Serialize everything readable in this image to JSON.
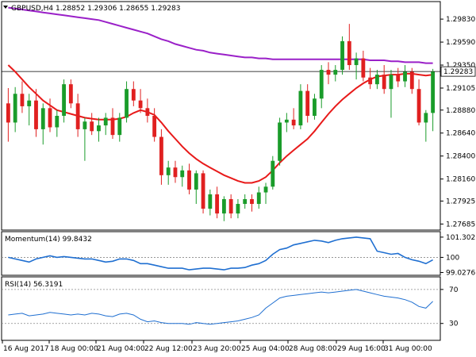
{
  "chart_data": [
    {
      "type": "candlestick",
      "symbol": "GBPUSD",
      "timeframe": "H4",
      "header": "GBPUSD,H4  1.28852 1.29306 1.28655 1.29283",
      "last_price": 1.29283,
      "last_price_label": "1.29283",
      "ylim": [
        1.2766,
        1.2998
      ],
      "y_ticks": [
        1.2983,
        1.2959,
        1.2935,
        1.2911,
        1.2888,
        1.2864,
        1.284,
        1.2816,
        1.2793,
        1.2769
      ],
      "y_tick_labels": [
        "1.29830",
        "1.29590",
        "1.29350",
        "1.29283",
        "1.29105",
        "1.28880",
        "1.28640",
        "1.28400",
        "1.28160",
        "1.27925",
        "1.27685"
      ],
      "x_labels": [
        "16 Aug 2017",
        "18 Aug 00:00",
        "21 Aug 04:00",
        "22 Aug 12:00",
        "23 Aug 20:00",
        "25 Aug 04:00",
        "28 Aug 08:00",
        "29 Aug 16:00",
        "31 Aug 00:00"
      ],
      "colors": {
        "bull": "#1a9c2a",
        "bear": "#e02020",
        "ma_fast": "#e81a1a",
        "ma_slow": "#9a20c8",
        "price_line": "#000000"
      },
      "candles": [
        {
          "o": 1.2895,
          "h": 1.2911,
          "l": 1.2855,
          "c": 1.2875
        },
        {
          "o": 1.2875,
          "h": 1.2912,
          "l": 1.2865,
          "c": 1.2905
        },
        {
          "o": 1.2905,
          "h": 1.2918,
          "l": 1.2885,
          "c": 1.2892
        },
        {
          "o": 1.2892,
          "h": 1.2905,
          "l": 1.2872,
          "c": 1.2898
        },
        {
          "o": 1.2898,
          "h": 1.291,
          "l": 1.286,
          "c": 1.2868
        },
        {
          "o": 1.2868,
          "h": 1.2895,
          "l": 1.2852,
          "c": 1.289
        },
        {
          "o": 1.289,
          "h": 1.29,
          "l": 1.2865,
          "c": 1.287
        },
        {
          "o": 1.287,
          "h": 1.2888,
          "l": 1.286,
          "c": 1.2882
        },
        {
          "o": 1.2882,
          "h": 1.292,
          "l": 1.2875,
          "c": 1.2915
        },
        {
          "o": 1.2915,
          "h": 1.292,
          "l": 1.289,
          "c": 1.2895
        },
        {
          "o": 1.2895,
          "h": 1.2905,
          "l": 1.286,
          "c": 1.2868
        },
        {
          "o": 1.2868,
          "h": 1.288,
          "l": 1.2835,
          "c": 1.2876
        },
        {
          "o": 1.2876,
          "h": 1.2885,
          "l": 1.2862,
          "c": 1.2866
        },
        {
          "o": 1.2866,
          "h": 1.288,
          "l": 1.2855,
          "c": 1.2872
        },
        {
          "o": 1.2872,
          "h": 1.2885,
          "l": 1.2862,
          "c": 1.288
        },
        {
          "o": 1.288,
          "h": 1.289,
          "l": 1.2858,
          "c": 1.2862
        },
        {
          "o": 1.2862,
          "h": 1.2885,
          "l": 1.2855,
          "c": 1.288
        },
        {
          "o": 1.288,
          "h": 1.2918,
          "l": 1.2875,
          "c": 1.291
        },
        {
          "o": 1.291,
          "h": 1.2918,
          "l": 1.2892,
          "c": 1.2898
        },
        {
          "o": 1.2898,
          "h": 1.291,
          "l": 1.2885,
          "c": 1.289
        },
        {
          "o": 1.289,
          "h": 1.29,
          "l": 1.2875,
          "c": 1.2882
        },
        {
          "o": 1.2882,
          "h": 1.289,
          "l": 1.2855,
          "c": 1.286
        },
        {
          "o": 1.286,
          "h": 1.2868,
          "l": 1.281,
          "c": 1.282
        },
        {
          "o": 1.282,
          "h": 1.2835,
          "l": 1.281,
          "c": 1.2828
        },
        {
          "o": 1.2828,
          "h": 1.2835,
          "l": 1.2812,
          "c": 1.2818
        },
        {
          "o": 1.2818,
          "h": 1.283,
          "l": 1.2808,
          "c": 1.2825
        },
        {
          "o": 1.2825,
          "h": 1.2832,
          "l": 1.28,
          "c": 1.2805
        },
        {
          "o": 1.2805,
          "h": 1.2825,
          "l": 1.279,
          "c": 1.2822
        },
        {
          "o": 1.2822,
          "h": 1.2825,
          "l": 1.278,
          "c": 1.2785
        },
        {
          "o": 1.2785,
          "h": 1.2805,
          "l": 1.2778,
          "c": 1.28
        },
        {
          "o": 1.28,
          "h": 1.2808,
          "l": 1.2775,
          "c": 1.278
        },
        {
          "o": 1.278,
          "h": 1.2798,
          "l": 1.2772,
          "c": 1.2795
        },
        {
          "o": 1.2795,
          "h": 1.28,
          "l": 1.2775,
          "c": 1.278
        },
        {
          "o": 1.278,
          "h": 1.2795,
          "l": 1.2775,
          "c": 1.279
        },
        {
          "o": 1.279,
          "h": 1.28,
          "l": 1.2785,
          "c": 1.2795
        },
        {
          "o": 1.2795,
          "h": 1.28,
          "l": 1.2782,
          "c": 1.279
        },
        {
          "o": 1.279,
          "h": 1.2808,
          "l": 1.2785,
          "c": 1.2802
        },
        {
          "o": 1.2802,
          "h": 1.2812,
          "l": 1.279,
          "c": 1.2808
        },
        {
          "o": 1.2808,
          "h": 1.284,
          "l": 1.2805,
          "c": 1.2835
        },
        {
          "o": 1.2835,
          "h": 1.288,
          "l": 1.283,
          "c": 1.2875
        },
        {
          "o": 1.2875,
          "h": 1.2885,
          "l": 1.2865,
          "c": 1.2878
        },
        {
          "o": 1.2878,
          "h": 1.289,
          "l": 1.2868,
          "c": 1.2872
        },
        {
          "o": 1.2872,
          "h": 1.2915,
          "l": 1.2868,
          "c": 1.2908
        },
        {
          "o": 1.2908,
          "h": 1.2915,
          "l": 1.2875,
          "c": 1.2882
        },
        {
          "o": 1.2882,
          "h": 1.2905,
          "l": 1.2878,
          "c": 1.29
        },
        {
          "o": 1.29,
          "h": 1.2935,
          "l": 1.289,
          "c": 1.293
        },
        {
          "o": 1.293,
          "h": 1.2938,
          "l": 1.2915,
          "c": 1.2925
        },
        {
          "o": 1.2925,
          "h": 1.2935,
          "l": 1.2918,
          "c": 1.293
        },
        {
          "o": 1.293,
          "h": 1.2965,
          "l": 1.2925,
          "c": 1.296
        },
        {
          "o": 1.296,
          "h": 1.2978,
          "l": 1.293,
          "c": 1.2935
        },
        {
          "o": 1.2935,
          "h": 1.2948,
          "l": 1.292,
          "c": 1.2942
        },
        {
          "o": 1.2942,
          "h": 1.295,
          "l": 1.2918,
          "c": 1.2922
        },
        {
          "o": 1.2922,
          "h": 1.2932,
          "l": 1.291,
          "c": 1.2915
        },
        {
          "o": 1.2915,
          "h": 1.293,
          "l": 1.291,
          "c": 1.2925
        },
        {
          "o": 1.2925,
          "h": 1.2935,
          "l": 1.2905,
          "c": 1.291
        },
        {
          "o": 1.291,
          "h": 1.293,
          "l": 1.288,
          "c": 1.2925
        },
        {
          "o": 1.2925,
          "h": 1.2932,
          "l": 1.2912,
          "c": 1.2918
        },
        {
          "o": 1.2918,
          "h": 1.2935,
          "l": 1.2912,
          "c": 1.2928
        },
        {
          "o": 1.2928,
          "h": 1.2932,
          "l": 1.2905,
          "c": 1.291
        },
        {
          "o": 1.291,
          "h": 1.292,
          "l": 1.2872,
          "c": 1.2875
        },
        {
          "o": 1.2875,
          "h": 1.2888,
          "l": 1.2855,
          "c": 1.2885
        },
        {
          "o": 1.2885,
          "h": 1.2931,
          "l": 1.2866,
          "c": 1.2928
        }
      ],
      "ma_fast": [
        1.2935,
        1.2928,
        1.292,
        1.2912,
        1.2905,
        1.2898,
        1.2893,
        1.2888,
        1.2886,
        1.2884,
        1.2882,
        1.288,
        1.2879,
        1.2878,
        1.2878,
        1.2878,
        1.2879,
        1.2881,
        1.2885,
        1.2888,
        1.2886,
        1.2883,
        1.2875,
        1.2866,
        1.2858,
        1.285,
        1.2843,
        1.2837,
        1.2832,
        1.2828,
        1.2824,
        1.282,
        1.2817,
        1.2814,
        1.2812,
        1.2812,
        1.2814,
        1.2818,
        1.2825,
        1.2833,
        1.284,
        1.2846,
        1.2852,
        1.2858,
        1.2866,
        1.2875,
        1.2884,
        1.2892,
        1.2899,
        1.2905,
        1.2911,
        1.2916,
        1.292,
        1.2923,
        1.2924,
        1.2925,
        1.2925,
        1.2926,
        1.2926,
        1.2925,
        1.2924,
        1.2925
      ],
      "ma_slow": [
        1.2995,
        1.2994,
        1.2993,
        1.2992,
        1.2991,
        1.299,
        1.2989,
        1.2988,
        1.2987,
        1.2986,
        1.2985,
        1.2984,
        1.2983,
        1.2982,
        1.298,
        1.2978,
        1.2976,
        1.2974,
        1.2972,
        1.297,
        1.2968,
        1.2965,
        1.2962,
        1.296,
        1.2957,
        1.2955,
        1.2953,
        1.2951,
        1.295,
        1.2948,
        1.2947,
        1.2946,
        1.2945,
        1.2944,
        1.2943,
        1.2943,
        1.2942,
        1.2942,
        1.2941,
        1.2941,
        1.2941,
        1.2941,
        1.2941,
        1.2941,
        1.2941,
        1.2941,
        1.2941,
        1.2941,
        1.2941,
        1.2941,
        1.2941,
        1.2941,
        1.294,
        1.294,
        1.294,
        1.2939,
        1.2939,
        1.2938,
        1.2938,
        1.2938,
        1.2937,
        1.2937
      ]
    },
    {
      "type": "line",
      "name": "Momentum(14)",
      "header": "Momentum(14) 99.8432",
      "ylim": [
        98.95,
        101.45
      ],
      "y_tick_labels": [
        "101.302",
        "100",
        "99.0276"
      ],
      "reference": 100,
      "color": "#1f6fd1",
      "values": [
        100.0,
        99.9,
        99.8,
        99.7,
        99.9,
        100.0,
        100.1,
        100.0,
        100.05,
        100.0,
        99.95,
        99.9,
        99.9,
        99.8,
        99.7,
        99.75,
        99.9,
        99.9,
        99.8,
        99.6,
        99.6,
        99.5,
        99.4,
        99.3,
        99.3,
        99.3,
        99.2,
        99.25,
        99.3,
        99.3,
        99.25,
        99.2,
        99.3,
        99.3,
        99.35,
        99.5,
        99.6,
        99.8,
        100.2,
        100.5,
        100.6,
        100.8,
        100.9,
        101.0,
        101.1,
        101.05,
        100.95,
        101.1,
        101.2,
        101.25,
        101.3,
        101.25,
        101.2,
        100.4,
        100.3,
        100.2,
        100.25,
        100.0,
        99.85,
        99.75,
        99.6,
        99.84
      ]
    },
    {
      "type": "line",
      "name": "RSI(14)",
      "header": "RSI(14) 56.3191",
      "ylim": [
        12,
        82
      ],
      "y_tick_labels": [
        "70",
        "30"
      ],
      "reference_levels": [
        70,
        30
      ],
      "color": "#1f6fd1",
      "values": [
        40,
        41,
        42,
        39,
        40,
        41,
        43,
        42,
        41,
        40,
        41,
        40,
        42,
        41,
        39,
        38,
        41,
        42,
        40,
        35,
        32,
        33,
        31,
        30,
        30,
        30,
        29,
        31,
        30,
        29,
        30,
        31,
        32,
        33,
        35,
        37,
        40,
        48,
        54,
        60,
        62,
        63,
        64,
        65,
        66,
        67,
        66,
        67,
        68,
        69,
        70,
        68,
        66,
        64,
        62,
        61,
        60,
        58,
        55,
        50,
        48,
        56
      ]
    }
  ]
}
